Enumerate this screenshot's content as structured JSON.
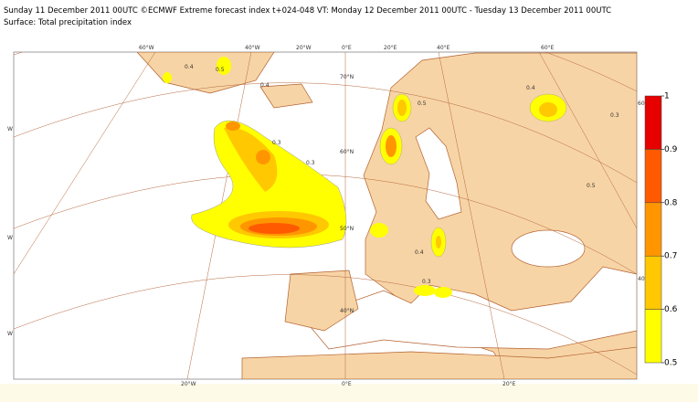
{
  "header": {
    "line1": "Sunday 11 December 2011 00UTC ©ECMWF Extreme forecast index t+024-048 VT: Monday 12 December 2011 00UTC - Tuesday 13 December 2011 00UTC",
    "line2": "Surface: Total precipitation index"
  },
  "map": {
    "labels": [
      "60°W",
      "40°W",
      "20°W",
      "0°E",
      "20°E",
      "40°E",
      "60°E",
      "70°N",
      "60°N",
      "50°N",
      "40°N",
      "20°W",
      "0°E",
      "20°E",
      "60",
      "40",
      "W",
      "W",
      "W"
    ],
    "contour_labels": [
      "0.4",
      "0.5",
      "0.4",
      "0.3",
      "0.3",
      "0.4",
      "0.3",
      "0.5",
      "0.4",
      "0.3",
      "0.5"
    ]
  },
  "colorbar": {
    "ticks": [
      0.5,
      0.6,
      0.7,
      0.8,
      0.9,
      1
    ],
    "colors": [
      "#ffff00",
      "#ffc800",
      "#ff9600",
      "#ff5a00",
      "#e60000"
    ]
  }
}
